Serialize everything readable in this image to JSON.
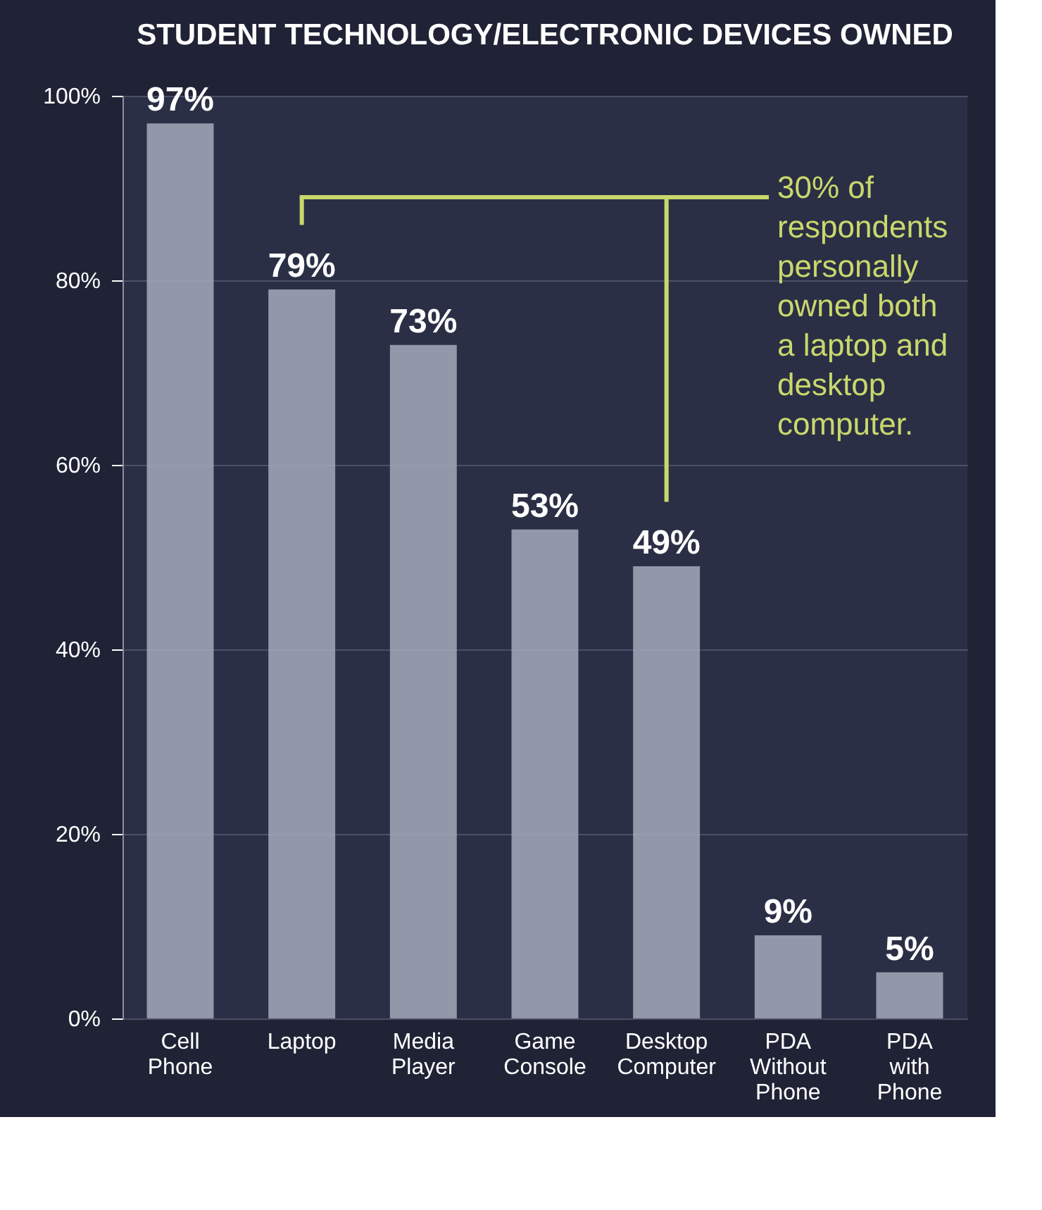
{
  "chart_data": {
    "type": "bar",
    "title": "STUDENT TECHNOLOGY/ELECTRONIC DEVICES OWNED",
    "categories": [
      "Cell Phone",
      "Laptop",
      "Media Player",
      "Game Console",
      "Desktop Computer",
      "PDA Without Phone",
      "PDA with Phone"
    ],
    "values": [
      97,
      79,
      73,
      53,
      49,
      9,
      5
    ],
    "color": "#a4a9bb",
    "ylim": [
      0,
      100
    ],
    "yticks": [
      {
        "value": 0,
        "label": "0%"
      },
      {
        "value": 20,
        "label": "20%"
      },
      {
        "value": 40,
        "label": "40%"
      },
      {
        "value": 60,
        "label": "60%"
      },
      {
        "value": 80,
        "label": "80%"
      },
      {
        "value": 100,
        "label": "100%"
      }
    ],
    "value_labels": [
      "97%",
      "79%",
      "73%",
      "53%",
      "49%",
      "9%",
      "5%"
    ],
    "annotations": [
      "30% of respondents personally owned both a laptop and desktop computer."
    ],
    "grid": "y"
  }
}
